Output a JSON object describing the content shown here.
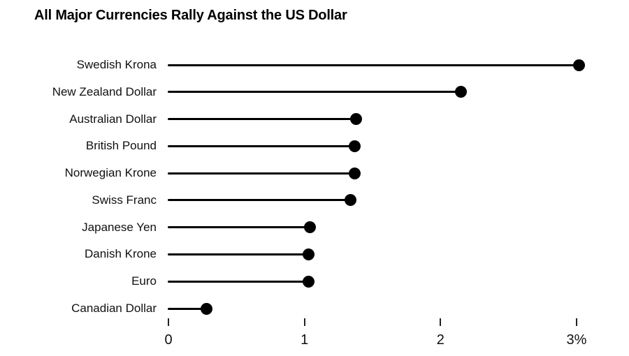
{
  "chart_data": {
    "type": "bar",
    "variant": "horizontal-lollipop",
    "title": "All Major Currencies Rally Against the US Dollar",
    "categories": [
      "Swedish Krona",
      "New Zealand Dollar",
      "Australian Dollar",
      "British Pound",
      "Norwegian Krone",
      "Swiss Franc",
      "Japanese Yen",
      "Danish Krone",
      "Euro",
      "Canadian Dollar"
    ],
    "values": [
      3.02,
      2.15,
      1.38,
      1.37,
      1.37,
      1.34,
      1.04,
      1.03,
      1.03,
      0.28
    ],
    "unit": "%",
    "xlabel": "",
    "ylabel": "",
    "xlim": [
      0,
      3
    ],
    "x_ticks": [
      {
        "value": 0,
        "label": "0"
      },
      {
        "value": 1,
        "label": "1"
      },
      {
        "value": 2,
        "label": "2"
      },
      {
        "value": 3,
        "label": "3%"
      }
    ],
    "grid": false,
    "legend": false
  },
  "colors": {
    "background": "#ffffff",
    "text": "#000000",
    "stem": "#000000",
    "dot": "#000000",
    "tick_mark": "#222222"
  }
}
